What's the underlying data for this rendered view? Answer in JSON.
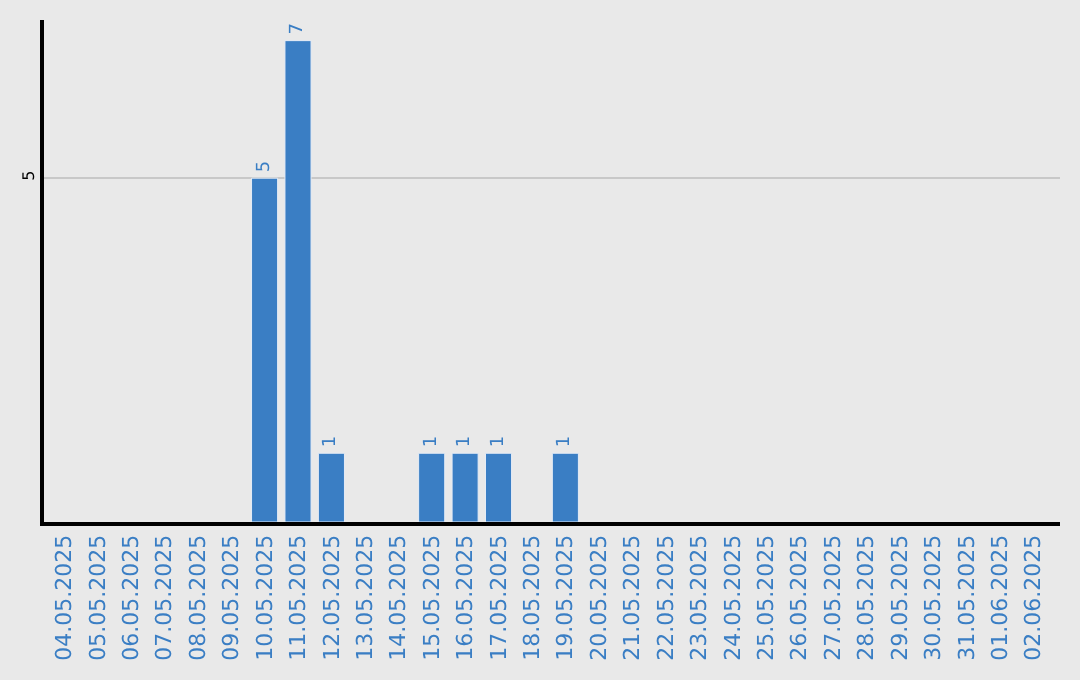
{
  "chart_data": {
    "type": "bar",
    "categories": [
      "04.05.2025",
      "05.05.2025",
      "06.05.2025",
      "07.05.2025",
      "08.05.2025",
      "09.05.2025",
      "10.05.2025",
      "11.05.2025",
      "12.05.2025",
      "13.05.2025",
      "14.05.2025",
      "15.05.2025",
      "16.05.2025",
      "17.05.2025",
      "18.05.2025",
      "19.05.2025",
      "20.05.2025",
      "21.05.2025",
      "22.05.2025",
      "23.05.2025",
      "24.05.2025",
      "25.05.2025",
      "26.05.2025",
      "27.05.2025",
      "28.05.2025",
      "29.05.2025",
      "30.05.2025",
      "31.05.2025",
      "01.06.2025",
      "02.06.2025"
    ],
    "values": [
      null,
      null,
      null,
      null,
      null,
      null,
      5,
      7,
      1,
      null,
      null,
      1,
      1,
      1,
      null,
      1,
      null,
      null,
      null,
      null,
      null,
      null,
      null,
      null,
      null,
      null,
      null,
      null,
      null,
      null
    ],
    "value_labels": [
      null,
      null,
      null,
      null,
      null,
      null,
      "5",
      "7",
      "1",
      null,
      null,
      "1",
      "1",
      "1",
      null,
      "1",
      null,
      null,
      null,
      null,
      null,
      null,
      null,
      null,
      null,
      null,
      null,
      null,
      null,
      null
    ],
    "color": "#3a7ec4",
    "ylim": [
      0,
      7.3
    ],
    "yticks": [
      5
    ],
    "grid": "y",
    "legend": false
  }
}
